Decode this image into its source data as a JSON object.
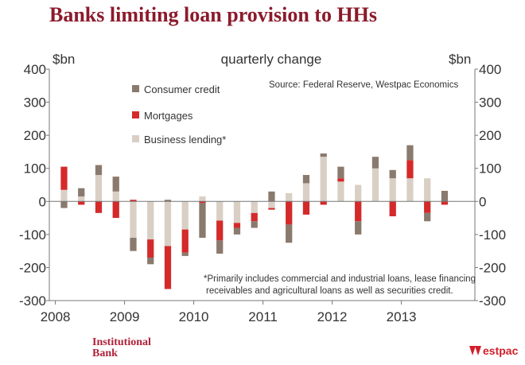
{
  "title": "Banks limiting loan provision to HHs",
  "footer": {
    "left_line1": "Institutional",
    "left_line2": "Bank",
    "right_brand": "Westpac",
    "right_brand_tail": "estpac"
  },
  "colors": {
    "consumer_credit": "#8a7a6e",
    "mortgages": "#d42a2a",
    "business_lending": "#d9cfc5",
    "title": "#8b1a2b",
    "brand": "#d31f2a"
  },
  "chart_data": {
    "type": "bar",
    "stacked": true,
    "title": "Banks limiting loan provision to HHs",
    "subtitle": "quarterly change",
    "ylabel_left": "$bn",
    "ylabel_right": "$bn",
    "source": "Source: Federal Reserve, Westpac Economics",
    "footnote_line1": "*Primarily includes commercial and industrial loans, lease financing",
    "footnote_line2": "receivables and agricultural loans as well as securities credit.",
    "ylim": [
      -300,
      400
    ],
    "yticks": [
      400,
      300,
      200,
      100,
      0,
      -100,
      -200,
      -300
    ],
    "ytick_labels": [
      "400",
      "300",
      "200",
      "100",
      "0",
      "-100",
      "-200",
      "-300"
    ],
    "xtick_labels": [
      "2008",
      "2009",
      "2010",
      "2011",
      "2012",
      "2013"
    ],
    "legend_position": "top-left",
    "legend": [
      "Consumer credit",
      "Mortgages",
      "Business lending*"
    ],
    "categories": [
      "2008Q1",
      "2008Q2",
      "2008Q3",
      "2008Q4",
      "2009Q1",
      "2009Q2",
      "2009Q3",
      "2009Q4",
      "2010Q1",
      "2010Q2",
      "2010Q3",
      "2010Q4",
      "2011Q1",
      "2011Q2",
      "2011Q3",
      "2011Q4",
      "2012Q1",
      "2012Q2",
      "2012Q3",
      "2012Q4",
      "2013Q1",
      "2013Q2"
    ],
    "series": [
      {
        "name": "Business lending*",
        "values": [
          35,
          15,
          80,
          30,
          -110,
          -115,
          -135,
          -85,
          15,
          -58,
          -65,
          -35,
          -20,
          25,
          55,
          135,
          60,
          50,
          100,
          70,
          70,
          70
        ]
      },
      {
        "name": "Mortgages",
        "values": [
          70,
          -10,
          -35,
          -50,
          5,
          -55,
          -130,
          -70,
          -5,
          -60,
          -15,
          -25,
          -5,
          -70,
          -40,
          -10,
          10,
          -60,
          0,
          -45,
          55,
          -35
        ]
      },
      {
        "name": "Consumer credit",
        "values": [
          -20,
          25,
          30,
          45,
          -40,
          -20,
          5,
          -10,
          -105,
          -40,
          -20,
          -20,
          30,
          -55,
          25,
          10,
          35,
          -40,
          35,
          25,
          45,
          -25
        ]
      }
    ],
    "extra_mortgage_bar_2013Q3": -10,
    "extra_consumer_bar_2013Q3": 32
  }
}
